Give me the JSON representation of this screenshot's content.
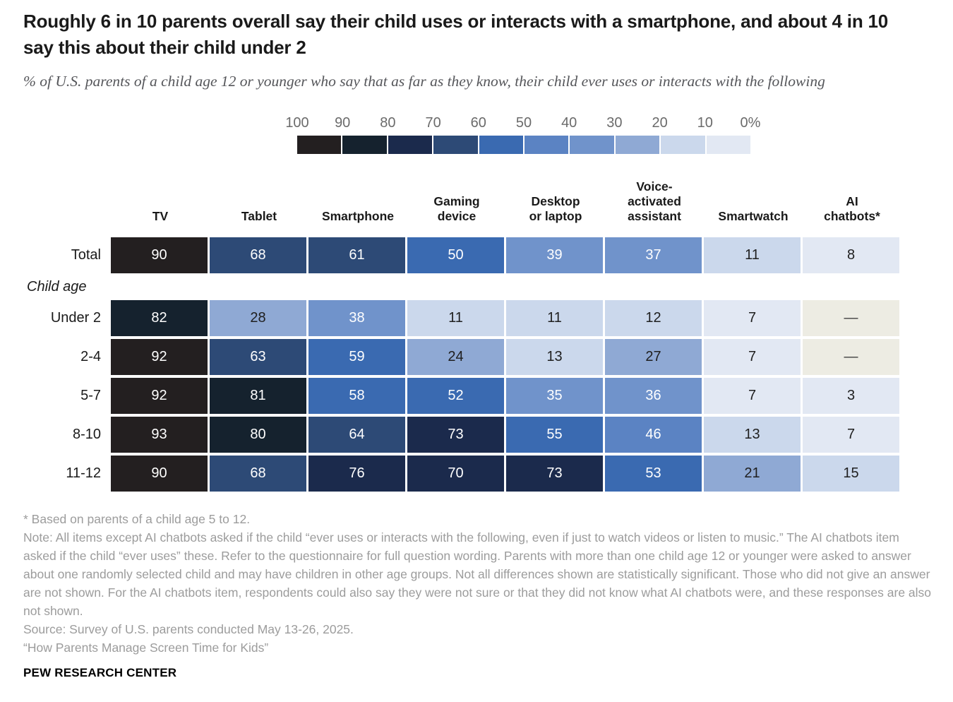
{
  "title": "Roughly 6 in 10 parents overall say their child uses or interacts with a smartphone, and about 4 in 10 say this about their child under 2",
  "subtitle": "% of U.S. parents of a child age 12 or younger who say that as far as they know, their child ever uses or interacts with the following",
  "chart_data": {
    "type": "heatmap",
    "legend": {
      "tick_labels": [
        "100",
        "90",
        "80",
        "70",
        "60",
        "50",
        "40",
        "30",
        "20",
        "10",
        "0%"
      ],
      "colors_high_to_low": [
        "#231f20",
        "#15222e",
        "#1b2a4c",
        "#2d4a76",
        "#3a6ab1",
        "#5b83c3",
        "#7093cb",
        "#8fa9d4",
        "#cbd8ec",
        "#e2e8f3"
      ]
    },
    "columns": [
      "TV",
      "Tablet",
      "Smartphone",
      "Gaming\ndevice",
      "Desktop\nor laptop",
      "Voice-\nactivated\nassistant",
      "Smartwatch",
      "AI\nchatbots*"
    ],
    "group_label": "Child age",
    "group_label_before_row": 1,
    "rows": [
      {
        "label": "Total",
        "values": [
          90,
          68,
          61,
          50,
          39,
          37,
          11,
          8
        ]
      },
      {
        "label": "Under 2",
        "values": [
          82,
          28,
          38,
          11,
          11,
          12,
          7,
          null
        ]
      },
      {
        "label": "2-4",
        "values": [
          92,
          63,
          59,
          24,
          13,
          27,
          7,
          null
        ]
      },
      {
        "label": "5-7",
        "values": [
          92,
          81,
          58,
          52,
          35,
          36,
          7,
          3
        ]
      },
      {
        "label": "8-10",
        "values": [
          93,
          80,
          64,
          73,
          55,
          46,
          13,
          7
        ]
      },
      {
        "label": "11-12",
        "values": [
          90,
          68,
          76,
          70,
          73,
          53,
          21,
          15
        ]
      }
    ],
    "no_data_symbol": "—",
    "no_data_color": "#edece3",
    "cell_text_dark": "#1f1f1f",
    "cell_text_light": "#ffffff"
  },
  "footnotes": [
    "* Based on parents of a child age 5 to 12.",
    "Note: All items except AI chatbots asked if the child “ever uses or interacts with the following, even if just to watch videos or listen to music.” The AI chatbots item asked if the child “ever uses” these. Refer to the questionnaire for full question wording. Parents with more than one child age 12 or younger were asked to answer about one randomly selected child and may have children in other age groups. Not all differences shown are statistically significant. Those who did not give an answer are not shown. For the AI chatbots item, respondents could also say they were not sure or that they did not know what AI chatbots were, and these responses are also not shown.",
    "Source: Survey of U.S. parents conducted May 13-26, 2025.",
    "“How Parents Manage Screen Time for Kids”"
  ],
  "branding": "PEW RESEARCH CENTER"
}
